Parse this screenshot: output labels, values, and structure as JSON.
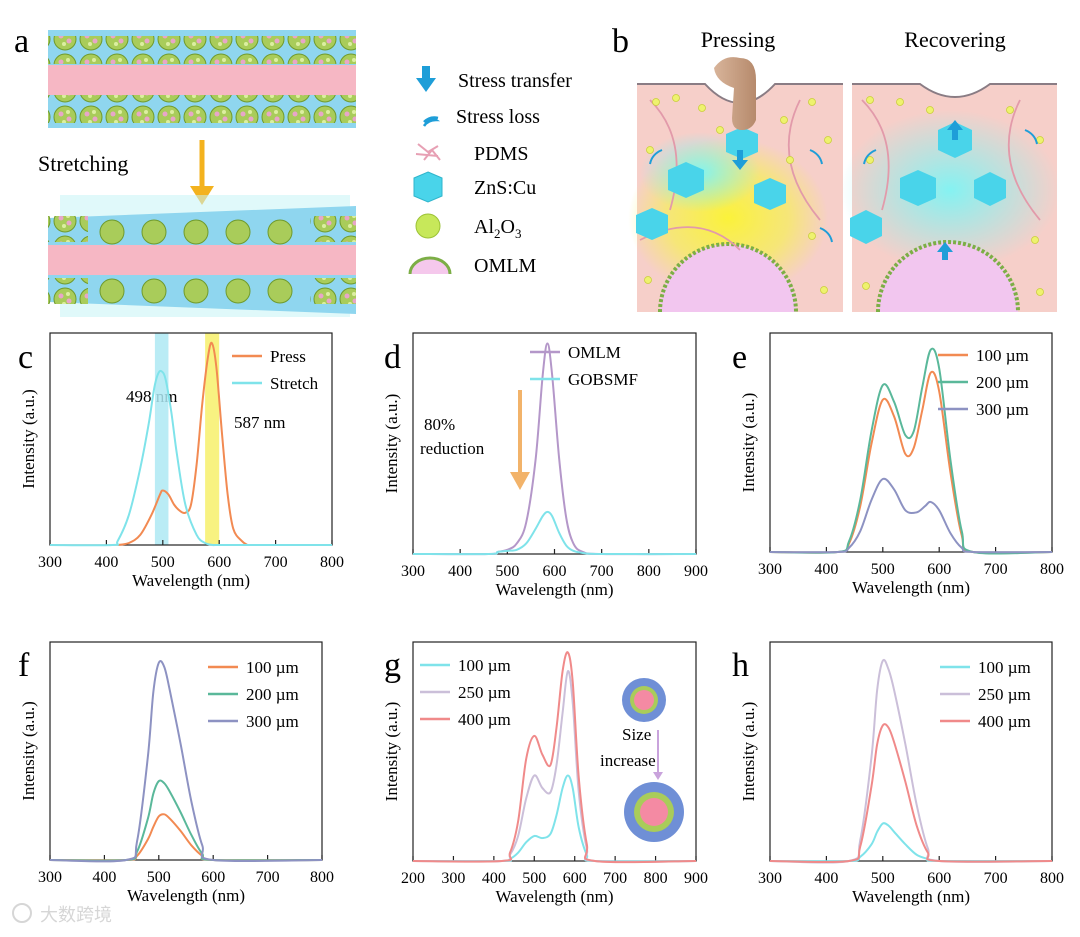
{
  "panel_a": {
    "label": "a",
    "stretch_label": "Stretching"
  },
  "legend_ab": {
    "items": [
      {
        "icon": "stress-transfer-arrow-icon",
        "label": "Stress transfer"
      },
      {
        "icon": "stress-loss-wave-icon",
        "label": "Stress loss"
      },
      {
        "icon": "pdms-network-icon",
        "label": "PDMS"
      },
      {
        "icon": "zns-cu-hexagon-icon",
        "label": "ZnS:Cu"
      },
      {
        "icon": "al2o3-sphere-icon",
        "label": "Al2O3",
        "base": "Al",
        "sub1": "2",
        "mid": "O",
        "sub2": "3"
      },
      {
        "icon": "omlm-dome-icon",
        "label": "OMLM"
      }
    ]
  },
  "panel_b": {
    "label": "b",
    "left_title": "Pressing",
    "right_title": "Recovering"
  },
  "watermark": "大数跨境",
  "colors": {
    "orange": "#f28a52",
    "cyan": "#7fe3ea",
    "purple": "#b497c9",
    "green": "#5ab89a",
    "slate": "#8d92c2",
    "pink": "#f08a8a",
    "lavender": "#cbbfd9"
  },
  "chart_data": [
    {
      "panel": "c",
      "type": "line",
      "xlabel": "Wavelength (nm)",
      "ylabel": "Intensity (a.u.)",
      "xlim": [
        300,
        800
      ],
      "ylim": [
        0,
        1.05
      ],
      "xticks": [
        300,
        400,
        500,
        600,
        700,
        800
      ],
      "series": [
        {
          "name": "Press",
          "color": "#f28a52",
          "x": [
            420,
            440,
            460,
            480,
            495,
            500,
            510,
            520,
            530,
            540,
            550,
            560,
            570,
            580,
            587,
            595,
            605,
            615,
            625,
            640,
            650
          ],
          "y": [
            0,
            0.01,
            0.05,
            0.15,
            0.25,
            0.27,
            0.25,
            0.2,
            0.17,
            0.16,
            0.2,
            0.4,
            0.7,
            0.93,
            1.0,
            0.88,
            0.55,
            0.25,
            0.08,
            0.02,
            0
          ]
        },
        {
          "name": "Stretch",
          "color": "#7fe3ea",
          "x": [
            300,
            410,
            420,
            440,
            460,
            475,
            485,
            492,
            498,
            505,
            515,
            525,
            540,
            560,
            575,
            590,
            610,
            800
          ],
          "y": [
            0,
            0,
            0.02,
            0.15,
            0.38,
            0.6,
            0.78,
            0.85,
            0.86,
            0.82,
            0.66,
            0.45,
            0.2,
            0.05,
            0.01,
            0,
            0,
            0
          ]
        }
      ],
      "highlights": [
        {
          "x0": 486,
          "x1": 510,
          "color": "#aee9f3"
        },
        {
          "x0": 575,
          "x1": 600,
          "color": "#f7f06b"
        }
      ],
      "annotations": [
        "498 nm",
        "587 nm"
      ],
      "legend": "top-right"
    },
    {
      "panel": "d",
      "type": "line",
      "xlabel": "Wavelength (nm)",
      "ylabel": "Intensity (a.u.)",
      "xlim": [
        300,
        900
      ],
      "ylim": [
        0,
        1.05
      ],
      "xticks": [
        300,
        400,
        500,
        600,
        700,
        800,
        900
      ],
      "series": [
        {
          "name": "OMLM",
          "color": "#b497c9",
          "x": [
            300,
            460,
            480,
            500,
            520,
            540,
            560,
            575,
            585,
            595,
            610,
            625,
            640,
            660,
            700,
            900
          ],
          "y": [
            0,
            0,
            0.01,
            0.02,
            0.05,
            0.15,
            0.45,
            0.85,
            1.0,
            0.85,
            0.45,
            0.17,
            0.05,
            0.01,
            0,
            0
          ]
        },
        {
          "name": "GOBSMF",
          "color": "#7fe3ea",
          "x": [
            300,
            460,
            480,
            500,
            520,
            540,
            560,
            575,
            585,
            595,
            610,
            625,
            640,
            660,
            700,
            900
          ],
          "y": [
            0,
            0,
            0.01,
            0.015,
            0.02,
            0.05,
            0.12,
            0.18,
            0.2,
            0.18,
            0.1,
            0.04,
            0.015,
            0.005,
            0,
            0
          ]
        }
      ],
      "annotations": [
        "80%",
        "reduction"
      ],
      "legend": "top-right"
    },
    {
      "panel": "e",
      "type": "line",
      "xlabel": "Wavelength (nm)",
      "ylabel": "Intensity (a.u.)",
      "xlim": [
        300,
        800
      ],
      "ylim": [
        0,
        1.05
      ],
      "xticks": [
        300,
        400,
        500,
        600,
        700,
        800
      ],
      "series": [
        {
          "name": "100 µm",
          "color": "#f28a52",
          "x": [
            300,
            420,
            440,
            460,
            480,
            500,
            520,
            540,
            555,
            570,
            585,
            600,
            620,
            640,
            660,
            800
          ],
          "y": [
            0,
            0,
            0.04,
            0.22,
            0.52,
            0.73,
            0.65,
            0.47,
            0.5,
            0.68,
            0.86,
            0.77,
            0.38,
            0.08,
            0,
            0
          ]
        },
        {
          "name": "200 µm",
          "color": "#5ab89a",
          "x": [
            300,
            420,
            440,
            460,
            480,
            500,
            520,
            540,
            555,
            570,
            585,
            600,
            620,
            640,
            660,
            800
          ],
          "y": [
            0,
            0,
            0.05,
            0.25,
            0.58,
            0.8,
            0.72,
            0.56,
            0.58,
            0.79,
            0.97,
            0.88,
            0.44,
            0.1,
            0,
            0
          ]
        },
        {
          "name": "300 µm",
          "color": "#8d92c2",
          "x": [
            300,
            420,
            440,
            460,
            480,
            500,
            520,
            540,
            560,
            575,
            585,
            600,
            620,
            640,
            660,
            800
          ],
          "y": [
            0,
            0,
            0.02,
            0.1,
            0.25,
            0.35,
            0.3,
            0.2,
            0.19,
            0.22,
            0.24,
            0.2,
            0.09,
            0.02,
            0,
            0
          ]
        }
      ],
      "legend": "top-right"
    },
    {
      "panel": "f",
      "type": "line",
      "xlabel": "Wavelength (nm)",
      "ylabel": "Intensity (a.u.)",
      "xlim": [
        300,
        800
      ],
      "ylim": [
        0,
        1.05
      ],
      "xticks": [
        300,
        400,
        500,
        600,
        700,
        800
      ],
      "series": [
        {
          "name": "100 µm",
          "color": "#f28a52",
          "x": [
            300,
            440,
            460,
            480,
            490,
            500,
            510,
            520,
            540,
            560,
            580,
            600,
            800
          ],
          "y": [
            0,
            0,
            0.02,
            0.1,
            0.16,
            0.21,
            0.22,
            0.2,
            0.14,
            0.07,
            0.02,
            0,
            0
          ]
        },
        {
          "name": "200 µm",
          "color": "#5ab89a",
          "x": [
            300,
            440,
            460,
            480,
            490,
            500,
            510,
            520,
            540,
            560,
            580,
            600,
            800
          ],
          "y": [
            0,
            0,
            0.04,
            0.2,
            0.32,
            0.38,
            0.37,
            0.33,
            0.23,
            0.12,
            0.03,
            0,
            0
          ]
        },
        {
          "name": "300 µm",
          "color": "#8d92c2",
          "x": [
            300,
            440,
            460,
            480,
            490,
            500,
            510,
            520,
            540,
            560,
            580,
            600,
            800
          ],
          "y": [
            0,
            0,
            0.09,
            0.5,
            0.81,
            0.95,
            0.93,
            0.82,
            0.56,
            0.28,
            0.07,
            0,
            0
          ]
        }
      ],
      "legend": "top-right"
    },
    {
      "panel": "g",
      "type": "line",
      "xlabel": "Wavelength (nm)",
      "ylabel": "Intensity (a.u.)",
      "xlim": [
        200,
        900
      ],
      "ylim": [
        0,
        1.05
      ],
      "xticks": [
        200,
        300,
        400,
        500,
        600,
        700,
        800,
        900
      ],
      "series": [
        {
          "name": "100 µm",
          "color": "#7fe3ea",
          "x": [
            200,
            420,
            440,
            460,
            480,
            500,
            520,
            540,
            555,
            570,
            583,
            595,
            610,
            630,
            650,
            900
          ],
          "y": [
            0,
            0,
            0.01,
            0.04,
            0.09,
            0.12,
            0.11,
            0.13,
            0.22,
            0.35,
            0.41,
            0.35,
            0.16,
            0.03,
            0,
            0
          ]
        },
        {
          "name": "250 µm",
          "color": "#cbbfd9",
          "x": [
            200,
            420,
            440,
            460,
            480,
            500,
            520,
            540,
            555,
            570,
            583,
            595,
            610,
            630,
            650,
            900
          ],
          "y": [
            0,
            0,
            0.03,
            0.12,
            0.3,
            0.41,
            0.35,
            0.33,
            0.46,
            0.71,
            0.91,
            0.76,
            0.33,
            0.06,
            0,
            0
          ]
        },
        {
          "name": "400 µm",
          "color": "#f08a8a",
          "x": [
            200,
            420,
            440,
            460,
            480,
            500,
            520,
            540,
            555,
            570,
            583,
            595,
            610,
            630,
            650,
            900
          ],
          "y": [
            0,
            0,
            0.04,
            0.19,
            0.49,
            0.6,
            0.51,
            0.46,
            0.64,
            0.91,
            1.0,
            0.86,
            0.4,
            0.08,
            0,
            0
          ]
        }
      ],
      "inset_text": [
        "Size",
        "increase"
      ],
      "legend": "top-left"
    },
    {
      "panel": "h",
      "type": "line",
      "xlabel": "Wavelength (nm)",
      "ylabel": "Intensity (a.u.)",
      "xlim": [
        300,
        800
      ],
      "ylim": [
        0,
        1.05
      ],
      "xticks": [
        300,
        400,
        500,
        600,
        700,
        800
      ],
      "series": [
        {
          "name": "100 µm",
          "color": "#7fe3ea",
          "x": [
            300,
            440,
            460,
            480,
            490,
            500,
            510,
            520,
            540,
            560,
            580,
            600,
            800
          ],
          "y": [
            0,
            0,
            0.02,
            0.08,
            0.14,
            0.18,
            0.17,
            0.14,
            0.08,
            0.03,
            0.01,
            0,
            0
          ]
        },
        {
          "name": "250 µm",
          "color": "#cbbfd9",
          "x": [
            300,
            440,
            460,
            480,
            490,
            500,
            510,
            520,
            540,
            560,
            580,
            600,
            800
          ],
          "y": [
            0,
            0,
            0.1,
            0.5,
            0.82,
            0.96,
            0.92,
            0.82,
            0.56,
            0.27,
            0.06,
            0,
            0
          ]
        },
        {
          "name": "400 µm",
          "color": "#f08a8a",
          "x": [
            300,
            440,
            460,
            480,
            490,
            500,
            510,
            520,
            540,
            560,
            580,
            600,
            800
          ],
          "y": [
            0,
            0,
            0.07,
            0.36,
            0.56,
            0.65,
            0.64,
            0.57,
            0.38,
            0.17,
            0.04,
            0,
            0
          ]
        }
      ],
      "legend": "top-right"
    }
  ]
}
